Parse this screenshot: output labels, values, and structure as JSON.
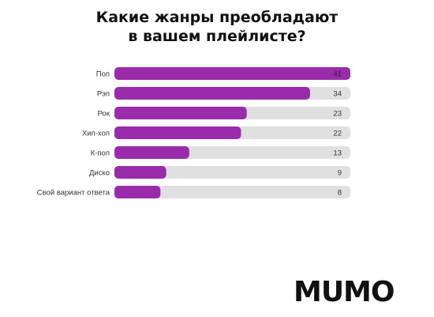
{
  "title_line1": "Какие жанры преобладают",
  "title_line2": "в вашем плейлисте?",
  "logo": "MUMO",
  "colors": {
    "bar_fill": "#9a2bab",
    "track": "#e0e0e0",
    "label": "#333333",
    "value_on_fill": "#3a1040",
    "value_on_track": "#333333"
  },
  "chart_data": {
    "type": "bar",
    "orientation": "horizontal",
    "title": "Какие жанры преобладают в вашем плейлисте?",
    "categories": [
      "Поп",
      "Рэп",
      "Рок",
      "Хип-хоп",
      "К-поп",
      "Диско",
      "Свой вариант ответа"
    ],
    "values": [
      41,
      34,
      23,
      22,
      13,
      9,
      8
    ],
    "xlim": [
      0,
      41
    ],
    "grid": false,
    "legend": "none"
  }
}
